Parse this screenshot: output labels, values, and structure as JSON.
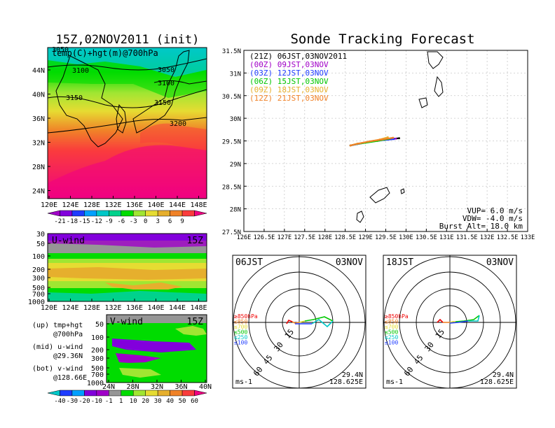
{
  "left_title": "15Z,02NOV2011 (init)",
  "right_title": "Sonde Tracking Forecast",
  "map_panel": {
    "label": "temp(C)+hgt(m)@700hPa",
    "y_ticks": [
      "44N",
      "40N",
      "36N",
      "32N",
      "28N",
      "24N"
    ],
    "x_ticks": [
      "120E",
      "124E",
      "128E",
      "132E",
      "136E",
      "140E",
      "144E",
      "148E"
    ],
    "contours": [
      "3050",
      "3100",
      "3050",
      "3100",
      "3150",
      "3150",
      "3200"
    ]
  },
  "temp_colorbar": {
    "labels": [
      "-21",
      "-18",
      "-15",
      "-12",
      "-9",
      "-6",
      "-3",
      "0",
      "3",
      "6",
      "9"
    ],
    "colors": [
      "#a000c8",
      "#8200dc",
      "#1e3cff",
      "#00a0ff",
      "#00c8c8",
      "#00d28c",
      "#00dc00",
      "#a0e632",
      "#e6dc32",
      "#e6af2d",
      "#f08228",
      "#fa3c3c",
      "#f00082"
    ]
  },
  "u_panel": {
    "label": "U-wind",
    "time": "15Z",
    "y_ticks": [
      "30",
      "50",
      "100",
      "200",
      "300",
      "500",
      "700",
      "1000"
    ],
    "x_ticks": [
      "120E",
      "124E",
      "128E",
      "132E",
      "136E",
      "140E",
      "144E",
      "148E"
    ]
  },
  "v_panel": {
    "label": "V-wind",
    "time": "15Z",
    "y_ticks": [
      "50",
      "100",
      "200",
      "300",
      "500",
      "700",
      "1000"
    ],
    "x_ticks": [
      "24N",
      "28N",
      "32N",
      "36N",
      "40N"
    ]
  },
  "wind_colorbar": {
    "labels": [
      "-40",
      "-30",
      "-20",
      "-10",
      "-1",
      "1",
      "10",
      "20",
      "30",
      "40",
      "50",
      "60"
    ],
    "colors": [
      "#00c8c8",
      "#1e3cff",
      "#00a0ff",
      "#8200dc",
      "#a000c8",
      "#969696",
      "#00dc00",
      "#a0e632",
      "#e6dc32",
      "#e6af2d",
      "#f08228",
      "#fa3c3c",
      "#f00082"
    ]
  },
  "legend_notes": [
    {
      "line1": "(up) tmp+hgt",
      "line2": "@700hPa"
    },
    {
      "line1": "(mid) u-wind",
      "line2": "@29.36N"
    },
    {
      "line1": "(bot) v-wind",
      "line2": "@128.66E"
    }
  ],
  "chart_data": {
    "type": "line",
    "title": "Sonde Tracking Forecast",
    "xlim": [
      126,
      133
    ],
    "ylim": [
      27.5,
      31.5
    ],
    "x_ticks": [
      "126E",
      "126.5E",
      "127E",
      "127.5E",
      "128E",
      "128.5E",
      "129E",
      "129.5E",
      "130E",
      "130.5E",
      "131E",
      "131.5E",
      "132E",
      "132.5E",
      "133E"
    ],
    "y_ticks": [
      "31.5N",
      "31N",
      "30.5N",
      "30N",
      "29.5N",
      "29N",
      "28.5N",
      "28N",
      "27.5N"
    ],
    "grid": true,
    "legend_position": "top-left",
    "series": [
      {
        "name": "(21Z) 06JST,03NOV2011",
        "color": "#000000",
        "x": [
          128.63,
          128.9,
          129.2,
          129.5,
          129.83
        ],
        "y": [
          29.4,
          29.45,
          29.5,
          29.53,
          29.56
        ]
      },
      {
        "name": "(00Z) 09JST,03NOV",
        "color": "#a000c8",
        "x": [
          128.63,
          128.85,
          129.1,
          129.4,
          129.75
        ],
        "y": [
          29.4,
          29.44,
          29.48,
          29.52,
          29.55
        ]
      },
      {
        "name": "(03Z) 12JST,03NOV",
        "color": "#1e3cff",
        "x": [
          128.63,
          128.8,
          129.05,
          129.35,
          129.7
        ],
        "y": [
          29.4,
          29.43,
          29.47,
          29.51,
          29.54
        ]
      },
      {
        "name": "(06Z) 15JST,03NOV",
        "color": "#00c800",
        "x": [
          128.63,
          128.78,
          129.0,
          129.3,
          129.6
        ],
        "y": [
          29.4,
          29.43,
          29.46,
          29.5,
          29.55
        ]
      },
      {
        "name": "(09Z) 18JST,03NOV",
        "color": "#e6af2d",
        "x": [
          128.63,
          128.8,
          129.05,
          129.35,
          129.55
        ],
        "y": [
          29.4,
          29.44,
          29.48,
          29.53,
          29.58
        ]
      },
      {
        "name": "(12Z) 21JST,03NOV",
        "color": "#f08228",
        "x": [
          128.63,
          128.82,
          129.1,
          129.4,
          129.68
        ],
        "y": [
          29.4,
          29.44,
          29.49,
          29.53,
          29.57
        ]
      }
    ],
    "annotations": [
      "VUP= 6.0 m/s",
      "VDW= -4.0 m/s",
      "Burst Alt= 18.0 km"
    ]
  },
  "polar_left": {
    "time": "06JST",
    "date": "03NOV",
    "ring_labels": [
      "15",
      "30",
      "45",
      "60"
    ],
    "units": "ms-1",
    "lat": "29.4N",
    "lon": "128.625E",
    "legend": [
      {
        "text": "≥850hPa",
        "color": "#f00000"
      },
      {
        "text": "≤850",
        "color": "#f08228"
      },
      {
        "text": "≤700",
        "color": "#e6dc32"
      },
      {
        "text": "≤500",
        "color": "#00c800"
      },
      {
        "text": "≤250",
        "color": "#00c8c8"
      },
      {
        "text": "≤100",
        "color": "#1e3cff"
      }
    ]
  },
  "polar_right": {
    "time": "18JST",
    "date": "03NOV",
    "ring_labels": [
      "15",
      "30",
      "45",
      "60"
    ],
    "units": "ms-1",
    "lat": "29.4N",
    "lon": "128.625E",
    "legend": [
      {
        "text": "≥850hPa",
        "color": "#f00000"
      },
      {
        "text": "≤850",
        "color": "#f08228"
      },
      {
        "text": "≤700",
        "color": "#e6dc32"
      },
      {
        "text": "≤500",
        "color": "#00c800"
      },
      {
        "text": "≤250",
        "color": "#00c8c8"
      },
      {
        "text": "≤100",
        "color": "#1e3cff"
      }
    ]
  }
}
